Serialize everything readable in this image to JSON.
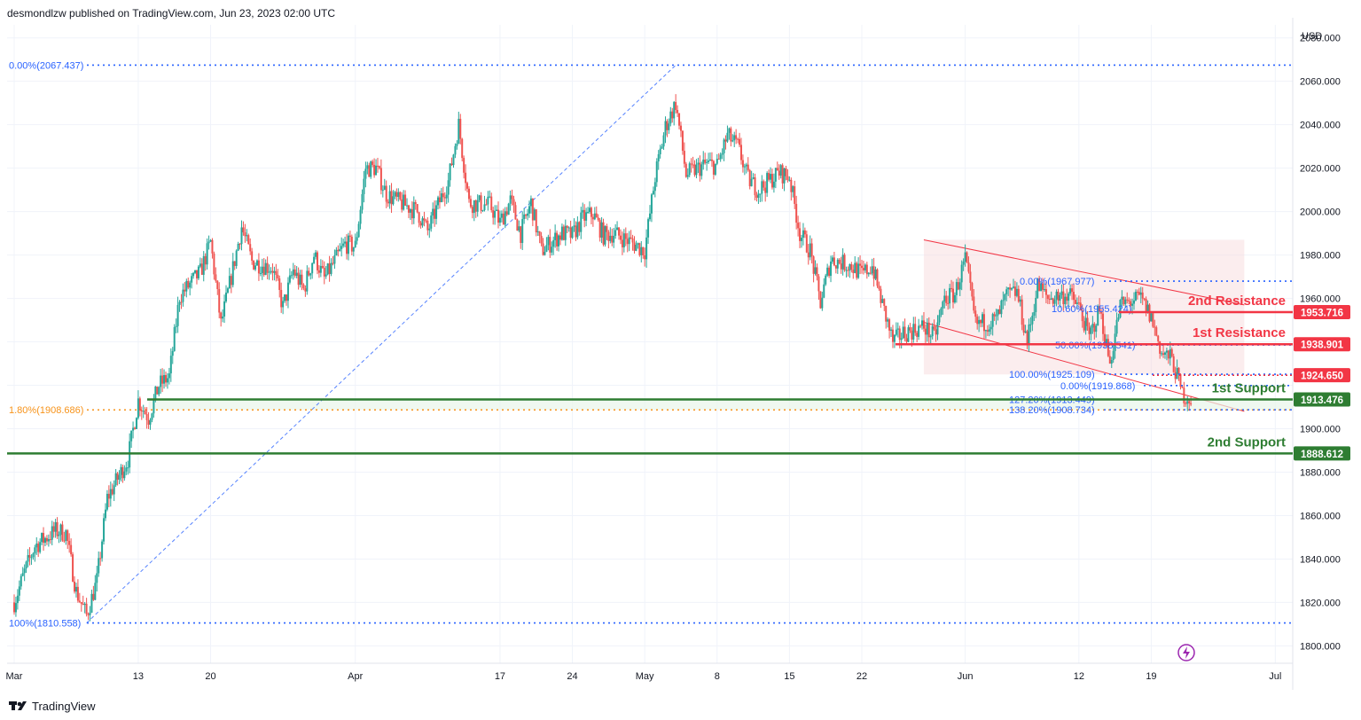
{
  "header": {
    "published": "desmondlzw published on TradingView.com, Jun 23, 2023 02:00 UTC"
  },
  "footer": {
    "brand": "TradingView",
    "logo_icon": "tradingview-logo-icon"
  },
  "colors": {
    "up": "#26a69a",
    "down": "#ef5350",
    "resistance": "#f23645",
    "support": "#2e7d32",
    "fib": "#2962ff",
    "fib_orange": "#f7931a",
    "grid": "#f0f3fa",
    "axis_text": "#131722",
    "pink_zone": "#f6d7da"
  },
  "chart_data": {
    "type": "candlestick",
    "instrument_currency": "USD",
    "y_axis": {
      "unit_label": "USD",
      "ylim": [
        1792,
        2086
      ],
      "ticks": [
        "2080.000",
        "2060.000",
        "2040.000",
        "2020.000",
        "2000.000",
        "1980.000",
        "1960.000",
        "1940.000",
        "1920.000",
        "1900.000",
        "1880.000",
        "1860.000",
        "1840.000",
        "1820.000",
        "1800.000"
      ]
    },
    "x_axis": {
      "range": [
        "2023-03-01",
        "2023-07-02"
      ],
      "ticks": [
        {
          "label": "Mar",
          "date": "2023-03-01"
        },
        {
          "label": "13",
          "date": "2023-03-13"
        },
        {
          "label": "20",
          "date": "2023-03-20"
        },
        {
          "label": "Apr",
          "date": "2023-04-03"
        },
        {
          "label": "17",
          "date": "2023-04-17"
        },
        {
          "label": "24",
          "date": "2023-04-24"
        },
        {
          "label": "May",
          "date": "2023-05-01"
        },
        {
          "label": "8",
          "date": "2023-05-08"
        },
        {
          "label": "15",
          "date": "2023-05-15"
        },
        {
          "label": "22",
          "date": "2023-05-22"
        },
        {
          "label": "Jun",
          "date": "2023-06-01"
        },
        {
          "label": "12",
          "date": "2023-06-12"
        },
        {
          "label": "19",
          "date": "2023-06-19"
        },
        {
          "label": "Jul",
          "date": "2023-07-01"
        }
      ]
    },
    "price_path": [
      [
        "2023-03-01",
        1820
      ],
      [
        "2023-03-02",
        1834
      ],
      [
        "2023-03-03",
        1846
      ],
      [
        "2023-03-05",
        1853
      ],
      [
        "2023-03-06",
        1852
      ],
      [
        "2023-03-07",
        1825
      ],
      [
        "2023-03-08",
        1814
      ],
      [
        "2023-03-09",
        1830
      ],
      [
        "2023-03-10",
        1868
      ],
      [
        "2023-03-12",
        1886
      ],
      [
        "2023-03-13",
        1913
      ],
      [
        "2023-03-14",
        1905
      ],
      [
        "2023-03-15",
        1920
      ],
      [
        "2023-03-16",
        1924
      ],
      [
        "2023-03-17",
        1961
      ],
      [
        "2023-03-19",
        1972
      ],
      [
        "2023-03-20",
        1986
      ],
      [
        "2023-03-21",
        1948
      ],
      [
        "2023-03-22",
        1970
      ],
      [
        "2023-03-23",
        1993
      ],
      [
        "2023-03-24",
        1977
      ],
      [
        "2023-03-26",
        1974
      ],
      [
        "2023-03-27",
        1956
      ],
      [
        "2023-03-28",
        1973
      ],
      [
        "2023-03-29",
        1964
      ],
      [
        "2023-03-30",
        1980
      ],
      [
        "2023-03-31",
        1969
      ],
      [
        "2023-04-02",
        1985
      ],
      [
        "2023-04-03",
        1984
      ],
      [
        "2023-04-04",
        2020
      ],
      [
        "2023-04-05",
        2020
      ],
      [
        "2023-04-06",
        2008
      ],
      [
        "2023-04-07",
        2005
      ],
      [
        "2023-04-09",
        2000
      ],
      [
        "2023-04-10",
        1991
      ],
      [
        "2023-04-11",
        2003
      ],
      [
        "2023-04-12",
        2014
      ],
      [
        "2023-04-13",
        2040
      ],
      [
        "2023-04-14",
        2004
      ],
      [
        "2023-04-16",
        2003
      ],
      [
        "2023-04-17",
        1995
      ],
      [
        "2023-04-18",
        2005
      ],
      [
        "2023-04-19",
        1990
      ],
      [
        "2023-04-20",
        2004
      ],
      [
        "2023-04-21",
        1982
      ],
      [
        "2023-04-23",
        1990
      ],
      [
        "2023-04-24",
        1989
      ],
      [
        "2023-04-25",
        1997
      ],
      [
        "2023-04-26",
        1999
      ],
      [
        "2023-04-27",
        1989
      ],
      [
        "2023-04-28",
        1990
      ],
      [
        "2023-04-30",
        1985
      ],
      [
        "2023-05-01",
        1982
      ],
      [
        "2023-05-02",
        2016
      ],
      [
        "2023-05-03",
        2039
      ],
      [
        "2023-05-04",
        2050
      ],
      [
        "2023-05-05",
        2017
      ],
      [
        "2023-05-07",
        2022
      ],
      [
        "2023-05-08",
        2021
      ],
      [
        "2023-05-09",
        2035
      ],
      [
        "2023-05-10",
        2030
      ],
      [
        "2023-05-11",
        2015
      ],
      [
        "2023-05-12",
        2010
      ],
      [
        "2023-05-14",
        2018
      ],
      [
        "2023-05-15",
        2016
      ],
      [
        "2023-05-16",
        1990
      ],
      [
        "2023-05-17",
        1982
      ],
      [
        "2023-05-18",
        1958
      ],
      [
        "2023-05-19",
        1978
      ],
      [
        "2023-05-21",
        1975
      ],
      [
        "2023-05-22",
        1971
      ],
      [
        "2023-05-23",
        1975
      ],
      [
        "2023-05-24",
        1957
      ],
      [
        "2023-05-25",
        1940
      ],
      [
        "2023-05-26",
        1944
      ],
      [
        "2023-05-28",
        1947
      ],
      [
        "2023-05-29",
        1942
      ],
      [
        "2023-05-30",
        1960
      ],
      [
        "2023-05-31",
        1962
      ],
      [
        "2023-06-01",
        1978
      ],
      [
        "2023-06-02",
        1948
      ],
      [
        "2023-06-04",
        1950
      ],
      [
        "2023-06-05",
        1961
      ],
      [
        "2023-06-06",
        1963
      ],
      [
        "2023-06-07",
        1940
      ],
      [
        "2023-06-08",
        1966
      ],
      [
        "2023-06-09",
        1960
      ],
      [
        "2023-06-11",
        1962
      ],
      [
        "2023-06-12",
        1956
      ],
      [
        "2023-06-13",
        1942
      ],
      [
        "2023-06-14",
        1955
      ],
      [
        "2023-06-15",
        1930
      ],
      [
        "2023-06-16",
        1957
      ],
      [
        "2023-06-18",
        1960
      ],
      [
        "2023-06-19",
        1951
      ],
      [
        "2023-06-20",
        1935
      ],
      [
        "2023-06-21",
        1932
      ],
      [
        "2023-06-22",
        1916
      ],
      [
        "2023-06-23",
        1913
      ]
    ],
    "channel": {
      "upper": [
        [
          "2023-05-28",
          1987
        ],
        [
          "2023-06-28",
          1957
        ]
      ],
      "lower": [
        [
          "2023-05-28",
          1949
        ],
        [
          "2023-06-28",
          1908
        ]
      ]
    },
    "fib_left": {
      "anchor_low": [
        "2023-03-08",
        1810.558
      ],
      "anchor_high": [
        "2023-05-04",
        2067.437
      ],
      "levels": [
        {
          "label": "0.00%(2067.437)",
          "value": 2067.437
        },
        {
          "label": "1.80%(1908.686)",
          "value": 1908.686
        },
        {
          "label": "100%(1810.558)",
          "value": 1810.558
        }
      ]
    },
    "fib_right": {
      "levels": [
        {
          "label": "0.00%(1967.977)",
          "value": 1967.977
        },
        {
          "label": "50.00%(1938.541)",
          "value": 1938.541
        },
        {
          "label": "100.00%(1925.109)",
          "value": 1925.109
        },
        {
          "label": "0.00%(1919.868)",
          "value": 1919.868
        },
        {
          "label": "127.20%(1913.449)",
          "value": 1913.449
        },
        {
          "label": "138.20%(1908.734)",
          "value": 1908.734
        }
      ],
      "partial_labels": [
        "10.60%(1955.424)"
      ]
    },
    "levels": [
      {
        "name": "2nd Resistance",
        "value": 1953.716,
        "price_label": "1953.716",
        "kind": "resistance"
      },
      {
        "name": "1st Resistance",
        "value": 1938.901,
        "price_label": "1938.901",
        "kind": "resistance"
      },
      {
        "name": "",
        "value": 1924.65,
        "price_label": "1924.650",
        "kind": "resistance"
      },
      {
        "name": "1st Support",
        "value": 1913.476,
        "price_label": "1913.476",
        "kind": "support"
      },
      {
        "name": "2nd Support",
        "value": 1888.612,
        "price_label": "1888.612",
        "kind": "support"
      }
    ]
  }
}
